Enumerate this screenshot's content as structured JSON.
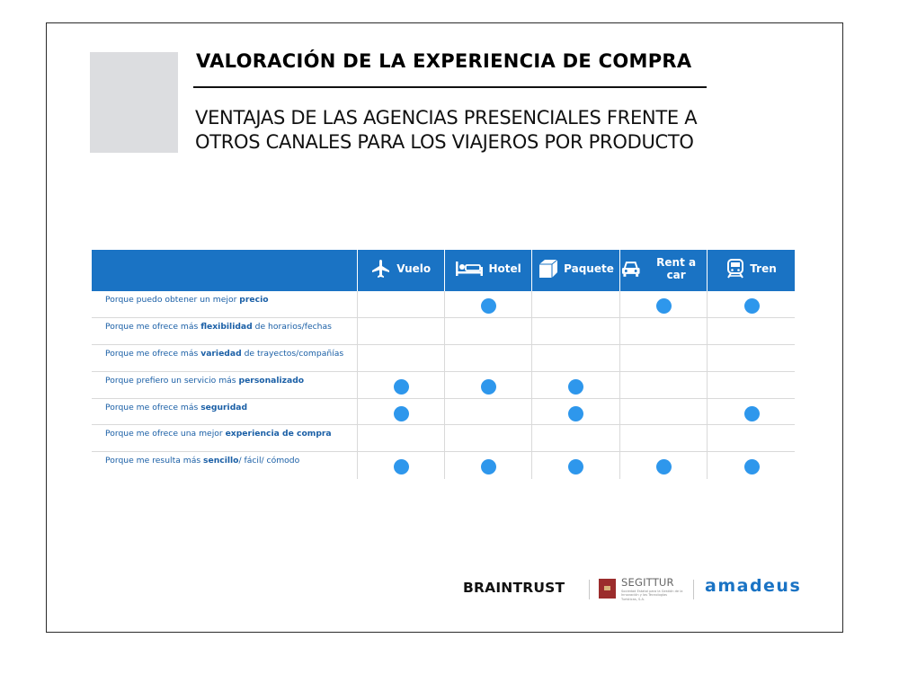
{
  "slide": {
    "title": "VALORACIÓN DE LA EXPERIENCIA DE COMPRA",
    "subtitle_line1": "VENTAJAS DE LAS AGENCIAS PRESENCIALES FRENTE A",
    "subtitle_line2": "OTROS CANALES PARA LOS VIAJEROS POR PRODUCTO"
  },
  "table": {
    "columns": [
      {
        "label": "Vuelo",
        "icon": "airplane-icon"
      },
      {
        "label": "Hotel",
        "icon": "bed-icon"
      },
      {
        "label": "Paquete",
        "icon": "package-icon"
      },
      {
        "label": "Rent a car",
        "icon": "car-icon"
      },
      {
        "label": "Tren",
        "icon": "train-icon"
      }
    ],
    "rows": [
      {
        "pre": "Porque puedo obtener un mejor ",
        "bold": "precio",
        "post": "",
        "marks": [
          false,
          true,
          false,
          true,
          true
        ]
      },
      {
        "pre": "Porque me ofrece más ",
        "bold": "flexibilidad",
        "post": " de horarios/fechas",
        "marks": [
          false,
          false,
          false,
          false,
          false
        ]
      },
      {
        "pre": "Porque  me ofrece más ",
        "bold": "variedad",
        "post": " de trayectos/compañías",
        "marks": [
          false,
          false,
          false,
          false,
          false
        ]
      },
      {
        "pre": "Porque  prefiero un servicio más ",
        "bold": "personalizado",
        "post": "",
        "marks": [
          true,
          true,
          true,
          false,
          false
        ]
      },
      {
        "pre": "Porque  me ofrece más ",
        "bold": "seguridad",
        "post": "",
        "marks": [
          true,
          false,
          true,
          false,
          true
        ]
      },
      {
        "pre": "Porque  me ofrece una mejor ",
        "bold": "experiencia de compra",
        "post": "",
        "marks": [
          false,
          false,
          false,
          false,
          false
        ]
      },
      {
        "pre": "Porque  me resulta más ",
        "bold": "sencillo",
        "post": "/ fácil/ cómodo",
        "marks": [
          true,
          true,
          true,
          true,
          true
        ]
      }
    ],
    "header_color": "#1a73c4",
    "dot_color": "#2e97ec",
    "label_color": "#1a5fa6"
  },
  "logos": {
    "braintrust": "BRAINTRUST",
    "segittur": "SEGITTUR",
    "segittur_tagline": "Sociedad Estatal para la Gestión de la Innovación y las Tecnologías Turísticas, S.A.",
    "amadeus": "amadeus"
  }
}
